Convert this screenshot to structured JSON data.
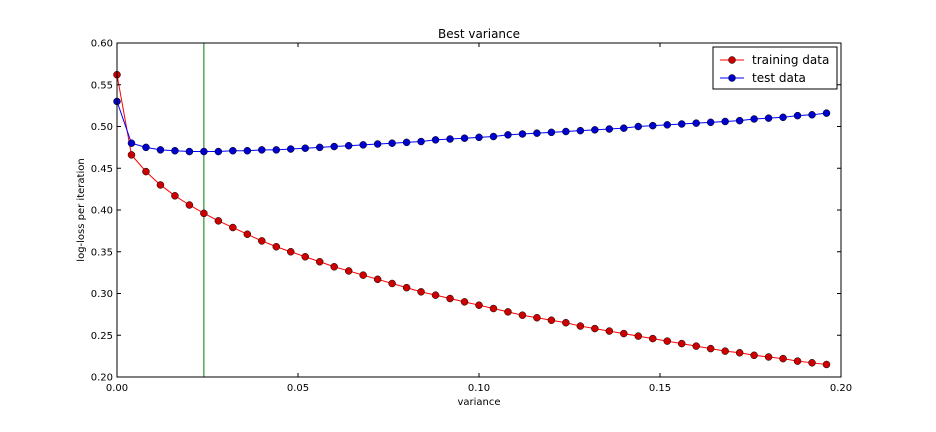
{
  "chart_data": {
    "type": "line",
    "title": "Best variance",
    "xlabel": "variance",
    "ylabel": "log-loss per iteration",
    "xlim": [
      0.0,
      0.2
    ],
    "ylim": [
      0.2,
      0.6
    ],
    "xticks": [
      "0.00",
      "0.05",
      "0.10",
      "0.15",
      "0.20"
    ],
    "yticks": [
      "0.20",
      "0.25",
      "0.30",
      "0.35",
      "0.40",
      "0.45",
      "0.50",
      "0.55",
      "0.60"
    ],
    "grid": false,
    "legend_position": "top-right",
    "vline_x": 0.024,
    "vline_color": "#007f00",
    "x": [
      0.0,
      0.004,
      0.008,
      0.012,
      0.016,
      0.02,
      0.024,
      0.028,
      0.032,
      0.036,
      0.04,
      0.044,
      0.048,
      0.052,
      0.056,
      0.06,
      0.064,
      0.068,
      0.072,
      0.076,
      0.08,
      0.084,
      0.088,
      0.092,
      0.096,
      0.1,
      0.104,
      0.108,
      0.112,
      0.116,
      0.12,
      0.124,
      0.128,
      0.132,
      0.136,
      0.14,
      0.144,
      0.148,
      0.152,
      0.156,
      0.16,
      0.164,
      0.168,
      0.172,
      0.176,
      0.18,
      0.184,
      0.188,
      0.192,
      0.196
    ],
    "series": [
      {
        "name": "training data",
        "color": "#ff0000",
        "marker_color": "#cc0000",
        "values": [
          0.562,
          0.466,
          0.446,
          0.43,
          0.417,
          0.406,
          0.396,
          0.387,
          0.379,
          0.371,
          0.363,
          0.356,
          0.35,
          0.344,
          0.338,
          0.332,
          0.327,
          0.322,
          0.317,
          0.312,
          0.307,
          0.302,
          0.298,
          0.294,
          0.29,
          0.286,
          0.282,
          0.278,
          0.274,
          0.271,
          0.268,
          0.265,
          0.261,
          0.258,
          0.255,
          0.252,
          0.249,
          0.246,
          0.243,
          0.24,
          0.237,
          0.234,
          0.231,
          0.229,
          0.226,
          0.224,
          0.222,
          0.219,
          0.217,
          0.215
        ]
      },
      {
        "name": "test data",
        "color": "#0000ff",
        "marker_color": "#0000cc",
        "values": [
          0.53,
          0.48,
          0.475,
          0.472,
          0.471,
          0.47,
          0.47,
          0.47,
          0.471,
          0.471,
          0.472,
          0.472,
          0.473,
          0.474,
          0.475,
          0.476,
          0.477,
          0.478,
          0.479,
          0.48,
          0.481,
          0.482,
          0.484,
          0.485,
          0.486,
          0.487,
          0.488,
          0.49,
          0.491,
          0.492,
          0.493,
          0.494,
          0.495,
          0.496,
          0.497,
          0.498,
          0.5,
          0.501,
          0.502,
          0.503,
          0.504,
          0.505,
          0.506,
          0.507,
          0.509,
          0.51,
          0.511,
          0.513,
          0.514,
          0.516
        ]
      }
    ]
  }
}
